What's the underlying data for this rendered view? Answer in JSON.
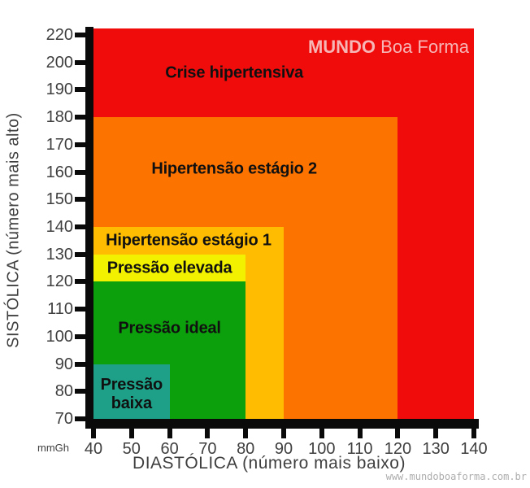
{
  "page": {
    "background": "#FFFFFF"
  },
  "brand": {
    "bold": "MUNDO",
    "regular": "Boa Forma",
    "color": "#F6B6B6"
  },
  "site_watermark": "www.mundoboaforma.com.br",
  "chart_data": {
    "type": "area",
    "variant": "layered-threshold-zones",
    "title": "",
    "xlabel": "DIASTÓLICA (número mais baixo)",
    "ylabel": "SISTÓLICA (número mais alto)",
    "unit_label": "mmGh",
    "xlim": [
      40,
      140
    ],
    "ylim": [
      70,
      220
    ],
    "x_ticks": [
      40,
      50,
      60,
      70,
      80,
      90,
      100,
      110,
      120,
      130,
      140
    ],
    "y_ticks": [
      220,
      200,
      190,
      180,
      170,
      160,
      150,
      140,
      130,
      120,
      110,
      100,
      90,
      80,
      70
    ],
    "grid": false,
    "legend": "none",
    "axis_color": "#0A0A0A",
    "tick_text_color": "#3F3F3F",
    "zone_text_color": "#101010",
    "zones": [
      {
        "id": "crise-hipertensiva",
        "label": "Crise hipertensiva",
        "color": "#F10C0C",
        "diastolic": [
          40,
          140
        ],
        "systolic": [
          70,
          225
        ],
        "label_anchor": {
          "diastolic": 77,
          "systolic": 196
        }
      },
      {
        "id": "hipertensao-estagio-2",
        "label": "Hipertensão estágio 2",
        "color": "#FC7300",
        "diastolic": [
          40,
          120
        ],
        "systolic": [
          70,
          180
        ],
        "label_anchor": {
          "diastolic": 77,
          "systolic": 161
        }
      },
      {
        "id": "hipertensao-estagio-1",
        "label": "Hipertensão estágio 1",
        "color": "#FFBC00",
        "diastolic": [
          40,
          90
        ],
        "systolic": [
          70,
          140
        ],
        "label_anchor": {
          "diastolic": 65,
          "systolic": 135
        }
      },
      {
        "id": "pressao-elevada",
        "label": "Pressão elevada",
        "color": "#F2F200",
        "diastolic": [
          40,
          80
        ],
        "systolic": [
          70,
          130
        ],
        "label_anchor": {
          "diastolic": 60,
          "systolic": 125
        }
      },
      {
        "id": "pressao-ideal",
        "label": "Pressão ideal",
        "color": "#0DA00D",
        "diastolic": [
          40,
          80
        ],
        "systolic": [
          70,
          120
        ],
        "label_anchor": {
          "diastolic": 60,
          "systolic": 103
        }
      },
      {
        "id": "pressao-baixa",
        "label": "Pressão baixa",
        "label_lines": [
          "Pressão",
          "baixa"
        ],
        "color": "#1E9F87",
        "diastolic": [
          40,
          60
        ],
        "systolic": [
          70,
          90
        ],
        "label_anchor": {
          "diastolic": 50,
          "systolic": 79
        }
      }
    ]
  }
}
